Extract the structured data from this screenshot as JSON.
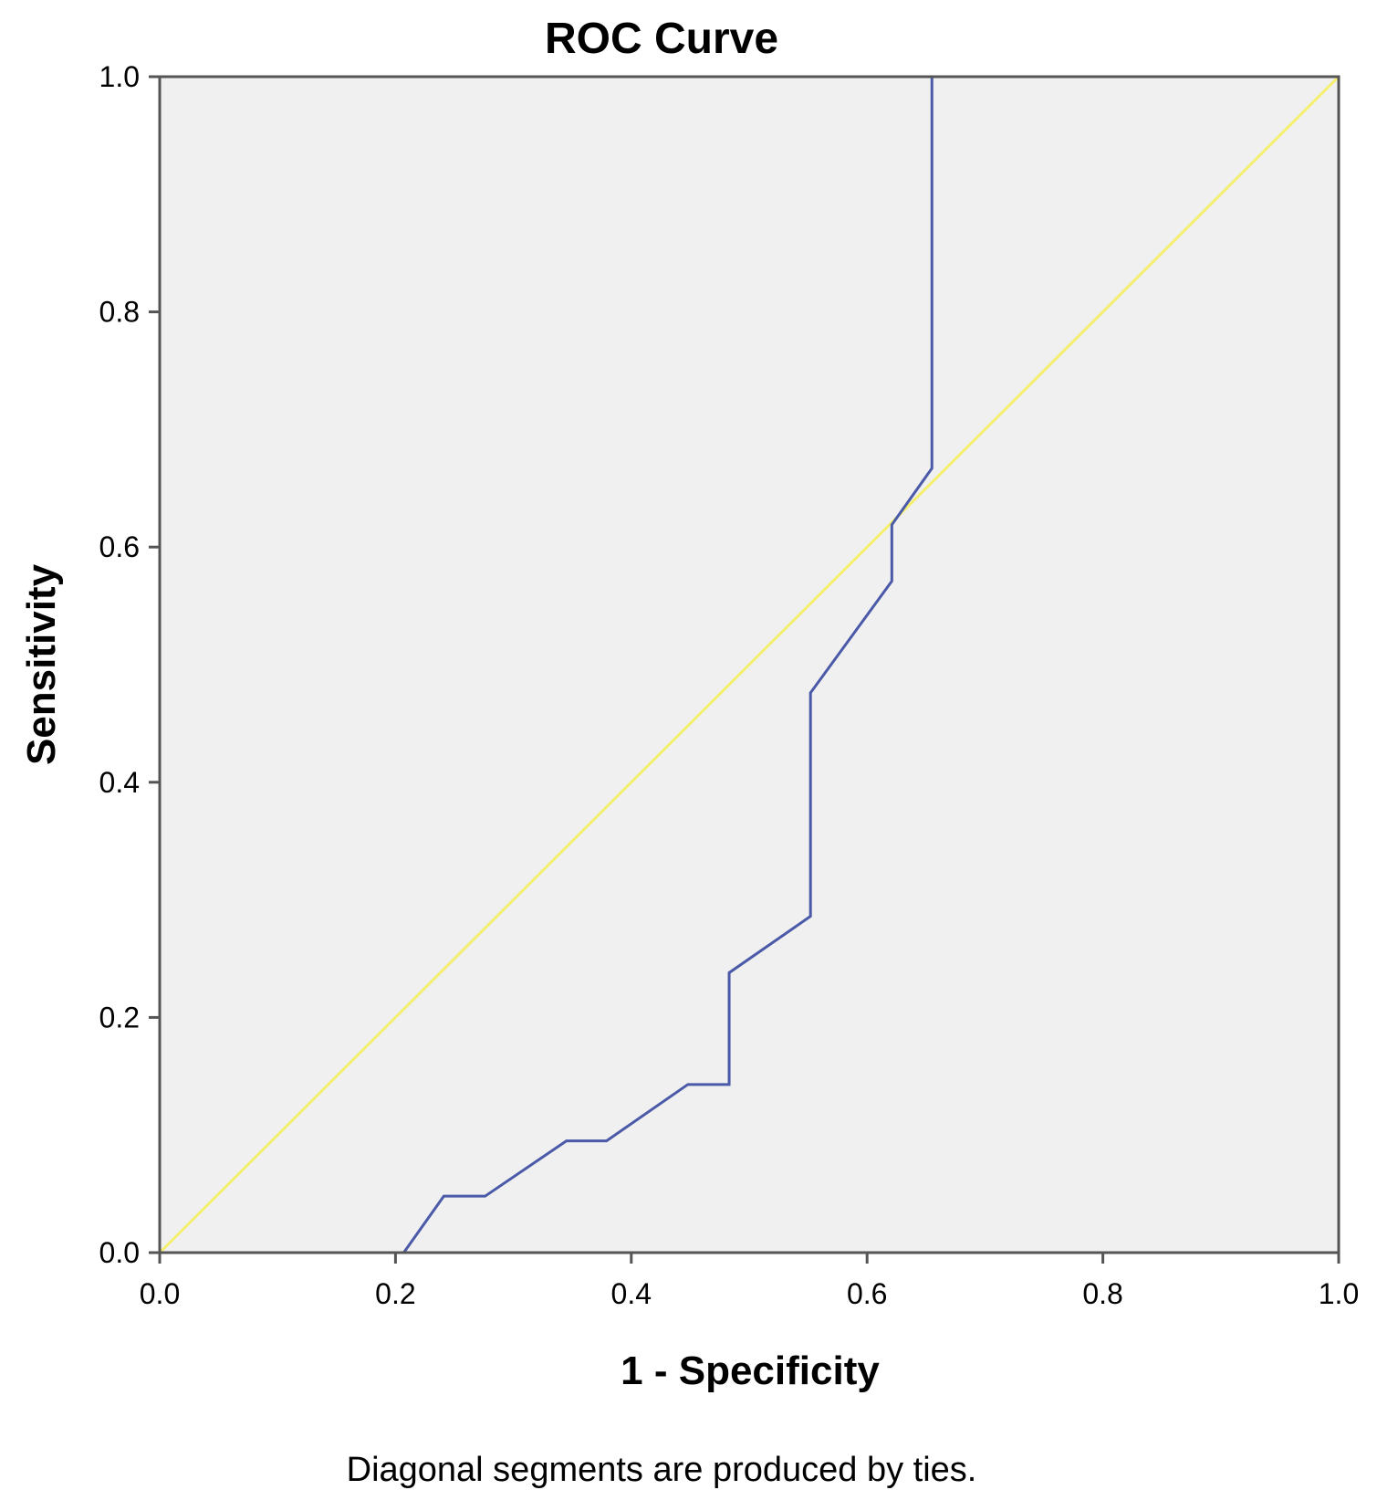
{
  "chart_data": {
    "type": "line",
    "title": "ROC Curve",
    "xlabel": "1 - Specificity",
    "ylabel": "Sensitivity",
    "xlim": [
      0,
      1
    ],
    "ylim": [
      0,
      1
    ],
    "xticks": [
      "0.0",
      "0.2",
      "0.4",
      "0.6",
      "0.8",
      "1.0"
    ],
    "yticks": [
      "0.0",
      "0.2",
      "0.4",
      "0.6",
      "0.8",
      "1.0"
    ],
    "grid": false,
    "background_color": "#f0f0f0",
    "series": [
      {
        "color": "#4a5aa8",
        "x": [
          0.0,
          0.207,
          0.241,
          0.276,
          0.345,
          0.379,
          0.448,
          0.483,
          0.483,
          0.552,
          0.552,
          0.621,
          0.621,
          0.655,
          0.655,
          1.0
        ],
        "y": [
          0.0,
          0.0,
          0.048,
          0.048,
          0.095,
          0.095,
          0.143,
          0.143,
          0.238,
          0.286,
          0.476,
          0.571,
          0.619,
          0.667,
          1.0,
          1.0
        ]
      },
      {
        "color": "#f5ef6e",
        "x": [
          0,
          1
        ],
        "y": [
          0,
          1
        ]
      }
    ],
    "footnote": "Diagonal segments are produced by ties."
  }
}
